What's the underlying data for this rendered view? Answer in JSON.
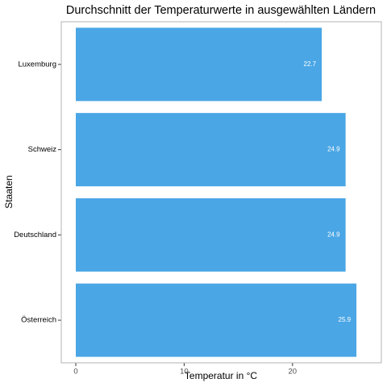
{
  "chart_data": {
    "type": "barh",
    "title": "Durchschnitt der Temperaturwerte in ausgewählten Ländern",
    "x_label": "Temperatur in °C",
    "y_label": "Staaten",
    "categories": [
      "Luxemburg",
      "Schweiz",
      "Deutschland",
      "Österreich"
    ],
    "values": [
      22.7,
      24.9,
      24.9,
      25.9
    ],
    "color": "#4aa6e5",
    "xlim": [
      -1.34,
      28.2
    ],
    "xticks": [
      0,
      10,
      20
    ],
    "grid": false
  }
}
